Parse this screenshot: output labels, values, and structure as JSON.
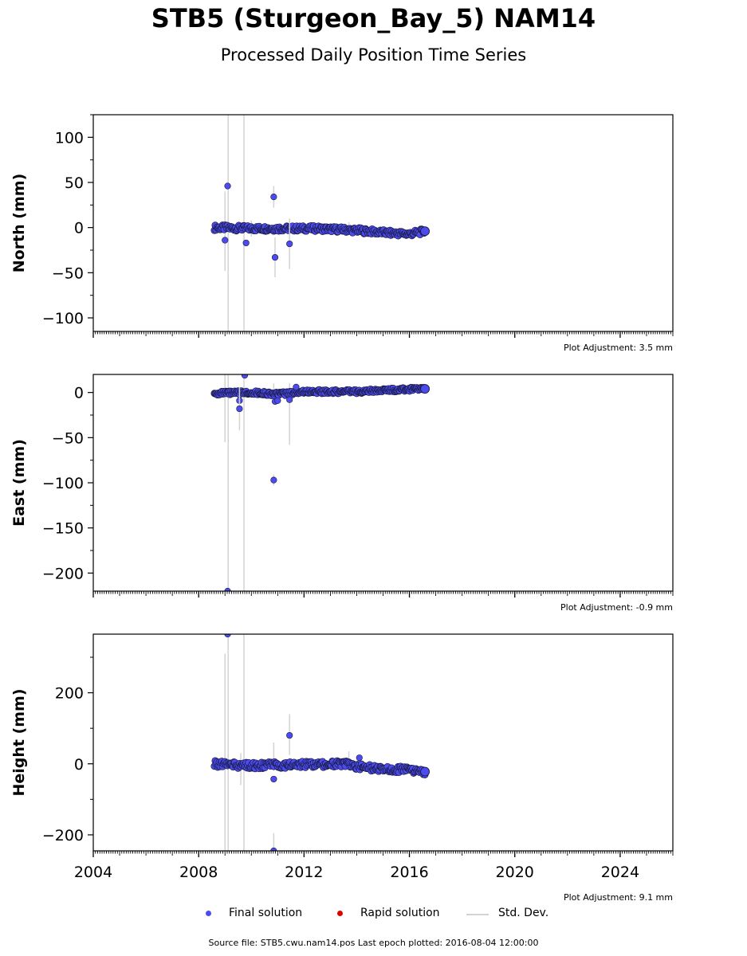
{
  "header": {
    "title": "STB5 (Sturgeon_Bay_5) NAM14",
    "subtitle": "Processed Daily Position Time Series"
  },
  "legend": {
    "final": {
      "label": "Final solution",
      "color": "#4b4bf0"
    },
    "rapid": {
      "label": "Rapid solution",
      "color": "#e00000"
    },
    "stddev": {
      "label": "Std. Dev.",
      "color": "#d3d3d3"
    }
  },
  "footer": {
    "source": "Source file: STB5.cwu.nam14.pos  Last epoch plotted: 2016-08-04 12:00:00"
  },
  "chart_data": [
    {
      "type": "scatter",
      "ylabel": "North (mm)",
      "adjustment": "Plot Adjustment: 3.5 mm",
      "xlim": [
        2004,
        2026
      ],
      "ylim": [
        -115,
        125
      ],
      "yticks": [
        100,
        50,
        0,
        -50,
        -100
      ],
      "ytick_labels": [
        "100",
        "50",
        "0",
        "−50",
        "−100"
      ],
      "trend": {
        "x": [
          2008.6,
          2010.0,
          2011.5,
          2012.5,
          2014.0,
          2015.2,
          2016.0,
          2016.59
        ],
        "y": [
          0,
          -1,
          -1,
          -1,
          -3,
          -6,
          -7,
          -4
        ]
      },
      "scatter_amp": 3,
      "outliers": [
        {
          "x": 2009.0,
          "y": -14,
          "err": 0
        },
        {
          "x": 2009.1,
          "y": 46,
          "err": 0
        },
        {
          "x": 2009.8,
          "y": -17,
          "err": 0
        },
        {
          "x": 2010.85,
          "y": 34,
          "err": 12
        },
        {
          "x": 2010.9,
          "y": -33,
          "err": 22
        },
        {
          "x": 2011.45,
          "y": -18,
          "err": 28
        }
      ],
      "errorbars": [
        {
          "x": 2009.12,
          "y1": 125,
          "y2": -115
        },
        {
          "x": 2009.72,
          "y1": 125,
          "y2": -115
        },
        {
          "x": 2009.0,
          "y1": 40,
          "y2": -48
        },
        {
          "x": 2010.0,
          "y1": 8,
          "y2": -10
        },
        {
          "x": 2013.7,
          "y1": 6,
          "y2": -5
        }
      ]
    },
    {
      "type": "scatter",
      "ylabel": "East (mm)",
      "adjustment": "Plot Adjustment: -0.9 mm",
      "xlim": [
        2004,
        2026
      ],
      "ylim": [
        -220,
        20
      ],
      "yticks": [
        0,
        -50,
        -100,
        -150,
        -200
      ],
      "ytick_labels": [
        "0",
        "−50",
        "−100",
        "−150",
        "−200"
      ],
      "trend": {
        "x": [
          2008.6,
          2010.0,
          2011.0,
          2012.0,
          2014.0,
          2015.5,
          2016.59
        ],
        "y": [
          -1,
          0,
          -2,
          1,
          1,
          3,
          4
        ]
      },
      "scatter_amp": 2,
      "outliers": [
        {
          "x": 2009.1,
          "y": -220,
          "err": 0
        },
        {
          "x": 2009.75,
          "y": 19,
          "err": 0
        },
        {
          "x": 2009.55,
          "y": -9,
          "err": 0
        },
        {
          "x": 2009.55,
          "y": -18,
          "err": 24
        },
        {
          "x": 2010.85,
          "y": -97,
          "err": 6
        },
        {
          "x": 2010.9,
          "y": -10,
          "err": 0
        },
        {
          "x": 2011.0,
          "y": -9,
          "err": 0
        },
        {
          "x": 2011.45,
          "y": -8,
          "err": 0
        },
        {
          "x": 2011.7,
          "y": 6,
          "err": 0
        }
      ],
      "errorbars": [
        {
          "x": 2009.12,
          "y1": 20,
          "y2": -220
        },
        {
          "x": 2009.72,
          "y1": 20,
          "y2": -220
        },
        {
          "x": 2009.0,
          "y1": 20,
          "y2": -55
        },
        {
          "x": 2011.45,
          "y1": 10,
          "y2": -58
        },
        {
          "x": 2010.85,
          "y1": 10,
          "y2": -12
        }
      ]
    },
    {
      "type": "scatter",
      "ylabel": "Height (mm)",
      "adjustment": "Plot Adjustment: 9.1 mm",
      "xlim": [
        2004,
        2026
      ],
      "ylim": [
        -245,
        365
      ],
      "yticks": [
        200,
        0,
        -200
      ],
      "ytick_labels": [
        "200",
        "0",
        "−200"
      ],
      "trend": {
        "x": [
          2008.6,
          2010.0,
          2012.0,
          2013.5,
          2014.5,
          2015.5,
          2016.59
        ],
        "y": [
          0,
          -5,
          -2,
          0,
          -12,
          -15,
          -22
        ]
      },
      "scatter_amp": 9,
      "outliers": [
        {
          "x": 2009.1,
          "y": 365,
          "err": 0
        },
        {
          "x": 2010.85,
          "y": -245,
          "err": 0
        },
        {
          "x": 2010.85,
          "y": -43,
          "err": 0
        },
        {
          "x": 2011.45,
          "y": 80,
          "err": 0
        },
        {
          "x": 2014.1,
          "y": 17,
          "err": 0
        }
      ],
      "errorbars": [
        {
          "x": 2009.12,
          "y1": 365,
          "y2": -245
        },
        {
          "x": 2009.72,
          "y1": 365,
          "y2": -245
        },
        {
          "x": 2009.0,
          "y1": 310,
          "y2": -245
        },
        {
          "x": 2011.45,
          "y1": 140,
          "y2": 25
        },
        {
          "x": 2010.85,
          "y1": 60,
          "y2": -20
        },
        {
          "x": 2009.6,
          "y1": 30,
          "y2": -60
        },
        {
          "x": 2013.7,
          "y1": 35,
          "y2": -15
        },
        {
          "x": 2010.85,
          "y1": -195,
          "y2": -245
        }
      ]
    }
  ],
  "xaxis": {
    "ticks": [
      2004,
      2008,
      2012,
      2016,
      2020,
      2024
    ],
    "tick_labels": [
      "2004",
      "2008",
      "2012",
      "2016",
      "2020",
      "2024"
    ]
  }
}
